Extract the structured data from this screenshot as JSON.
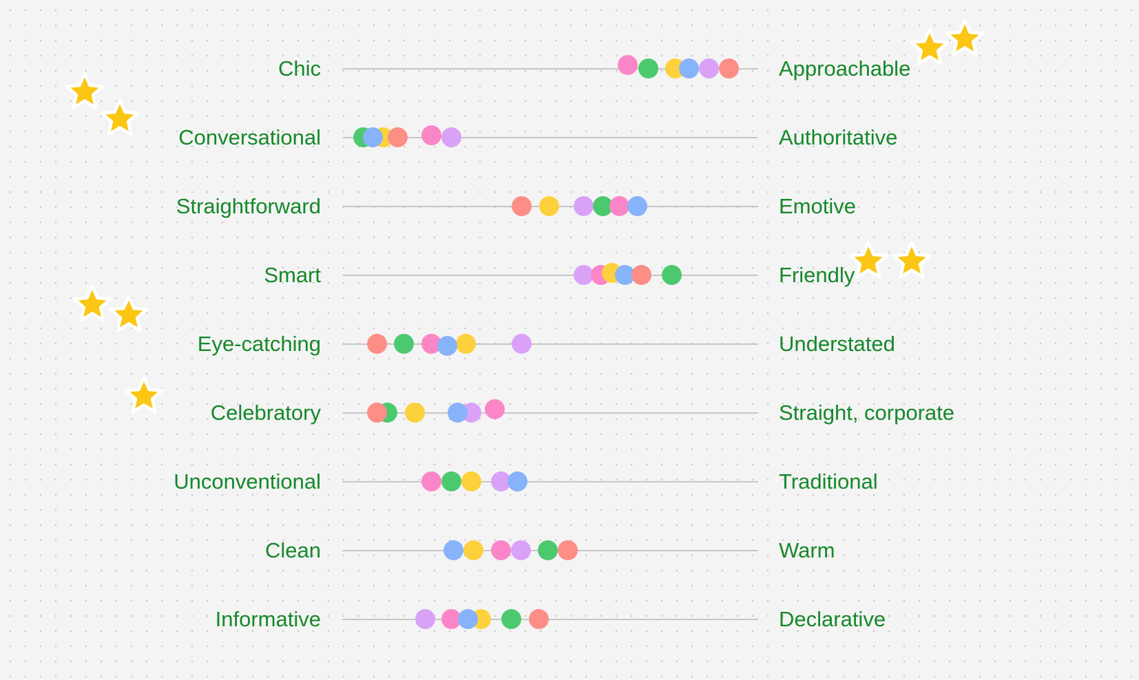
{
  "colors": {
    "label": "#15882a",
    "track": "#c6c6c6",
    "dots": {
      "pink": "#fb86c7",
      "green": "#4cc96f",
      "yellow": "#fdd13c",
      "blue": "#86b3fa",
      "purple": "#d9a2f7",
      "salmon": "#fc8e85"
    },
    "star_fill": "#fbc614",
    "star_stroke": "#ffffff"
  },
  "scale": {
    "min": 0,
    "max": 100
  },
  "rows": [
    {
      "left": "Chic",
      "right": "Approachable",
      "dots": [
        {
          "color": "pink",
          "value": 68.6,
          "lift": -5
        },
        {
          "color": "green",
          "value": 73.6
        },
        {
          "color": "yellow",
          "value": 80.1
        },
        {
          "color": "blue",
          "value": 83.4
        },
        {
          "color": "purple",
          "value": 88.1
        },
        {
          "color": "salmon",
          "value": 92.9
        }
      ],
      "stars": [
        {
          "side": "right",
          "slot": 0
        },
        {
          "side": "right",
          "slot": 1
        }
      ]
    },
    {
      "left": "Conversational",
      "right": "Authoritative",
      "dots": [
        {
          "color": "green",
          "value": 5.0
        },
        {
          "color": "yellow",
          "value": 9.8
        },
        {
          "color": "salmon",
          "value": 13.3
        },
        {
          "color": "blue",
          "value": 7.3
        },
        {
          "color": "pink",
          "value": 21.5,
          "lift": -3
        },
        {
          "color": "purple",
          "value": 26.3
        }
      ],
      "stars": [
        {
          "side": "left",
          "slot": 0
        },
        {
          "side": "left",
          "slot": 1
        }
      ]
    },
    {
      "left": "Straightforward",
      "right": "Emotive",
      "dots": [
        {
          "color": "salmon",
          "value": 43.2
        },
        {
          "color": "yellow",
          "value": 49.8
        },
        {
          "color": "purple",
          "value": 58.1
        },
        {
          "color": "green",
          "value": 62.7
        },
        {
          "color": "pink",
          "value": 66.7
        },
        {
          "color": "blue",
          "value": 71.0
        }
      ],
      "stars": []
    },
    {
      "left": "Smart",
      "right": "Friendly",
      "dots": [
        {
          "color": "purple",
          "value": 58.0
        },
        {
          "color": "pink",
          "value": 62.1
        },
        {
          "color": "yellow",
          "value": 64.8,
          "lift": -3
        },
        {
          "color": "blue",
          "value": 67.9
        },
        {
          "color": "salmon",
          "value": 72.0
        },
        {
          "color": "green",
          "value": 79.3
        }
      ],
      "stars": [
        {
          "side": "right",
          "slot": 0
        },
        {
          "side": "right",
          "slot": 1
        }
      ]
    },
    {
      "left": "Eye-catching",
      "right": "Understated",
      "dots": [
        {
          "color": "salmon",
          "value": 8.3
        },
        {
          "color": "green",
          "value": 14.9
        },
        {
          "color": "pink",
          "value": 21.5
        },
        {
          "color": "yellow",
          "value": 29.8
        },
        {
          "color": "blue",
          "value": 25.3,
          "lift": 3
        },
        {
          "color": "purple",
          "value": 43.2
        }
      ],
      "stars": [
        {
          "side": "left",
          "slot": 0
        },
        {
          "side": "left",
          "slot": 1
        }
      ]
    },
    {
      "left": "Celebratory",
      "right": "Straight, corporate",
      "dots": [
        {
          "color": "green",
          "value": 10.8
        },
        {
          "color": "salmon",
          "value": 8.3
        },
        {
          "color": "yellow",
          "value": 17.4
        },
        {
          "color": "purple",
          "value": 31.1
        },
        {
          "color": "blue",
          "value": 27.8
        },
        {
          "color": "pink",
          "value": 36.6,
          "lift": -5
        }
      ],
      "stars": [
        {
          "side": "left",
          "slot": 0
        }
      ]
    },
    {
      "left": "Unconventional",
      "right": "Traditional",
      "dots": [
        {
          "color": "pink",
          "value": 21.5
        },
        {
          "color": "green",
          "value": 26.3
        },
        {
          "color": "yellow",
          "value": 31.1
        },
        {
          "color": "purple",
          "value": 38.1
        },
        {
          "color": "blue",
          "value": 42.1
        }
      ],
      "stars": []
    },
    {
      "left": "Clean",
      "right": "Warm",
      "dots": [
        {
          "color": "blue",
          "value": 26.7
        },
        {
          "color": "yellow",
          "value": 31.5
        },
        {
          "color": "pink",
          "value": 38.1
        },
        {
          "color": "purple",
          "value": 43.0
        },
        {
          "color": "green",
          "value": 49.5
        },
        {
          "color": "salmon",
          "value": 54.3
        }
      ],
      "stars": []
    },
    {
      "left": "Informative",
      "right": "Declarative",
      "dots": [
        {
          "color": "purple",
          "value": 19.9
        },
        {
          "color": "pink",
          "value": 26.3
        },
        {
          "color": "yellow",
          "value": 33.4
        },
        {
          "color": "blue",
          "value": 30.2
        },
        {
          "color": "green",
          "value": 40.7
        },
        {
          "color": "salmon",
          "value": 47.3
        }
      ],
      "stars": []
    }
  ]
}
